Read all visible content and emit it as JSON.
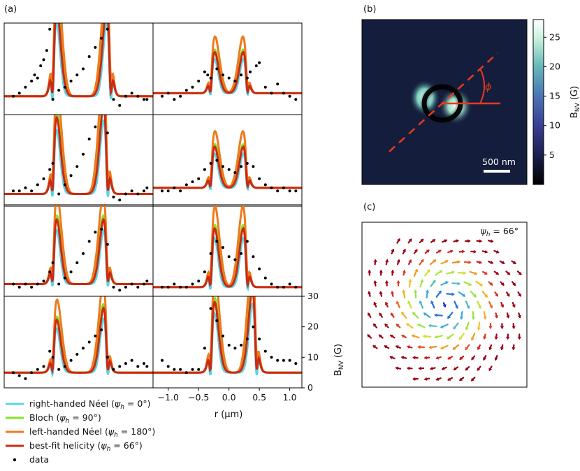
{
  "panels": {
    "a_label": "(a)",
    "b_label": "(b)",
    "c_label": "(c)"
  },
  "chart_data": [
    {
      "panel": "a",
      "type": "line",
      "xlabel": "r (µm)",
      "xlim": [
        -1.25,
        1.2
      ],
      "xticks": [
        "−1.0",
        "−0.5",
        "0.0",
        "0.5",
        "1.0"
      ],
      "xtick_values": [
        -1.0,
        -0.5,
        0.0,
        0.5,
        1.0
      ],
      "ylabel": "B_NV (G)",
      "ylabel_main": "B",
      "ylabel_sub": "NV",
      "ylabel_unit": "(G)",
      "ylim": [
        0,
        30
      ],
      "yticks": [
        "0",
        "10",
        "20",
        "30"
      ],
      "ytick_values": [
        0,
        10,
        20,
        30
      ],
      "grid": false,
      "legend": {
        "placement": "below",
        "entries": [
          {
            "text_pre": "right-handed Néel (",
            "psi": "ψ",
            "psi_sub": "h",
            "text_post": " = 0°)",
            "color": "#5bd4e6",
            "marker": "line"
          },
          {
            "text_pre": "Bloch (",
            "psi": "ψ",
            "psi_sub": "h",
            "text_post": " = 90°)",
            "color": "#7fe81f",
            "marker": "line"
          },
          {
            "text_pre": "left-handed Néel (",
            "psi": "ψ",
            "psi_sub": "h",
            "text_post": " = 180°)",
            "color": "#f07a1c",
            "marker": "line"
          },
          {
            "text_pre": "best-fit helicity (",
            "psi": "ψ",
            "psi_sub": "h",
            "text_post": " = 66°)",
            "color": "#cc2a12",
            "marker": "line"
          },
          {
            "text_pre": "data",
            "psi": "",
            "psi_sub": "",
            "text_post": "",
            "color": "#000000",
            "marker": "dot"
          }
        ]
      },
      "subplots_layout": {
        "rows": 4,
        "cols": 2
      },
      "subplots": [
        {
          "row": 0,
          "col": 0,
          "edges": [
            -0.45,
            0.5
          ],
          "amp": [
            30,
            30
          ],
          "base": 6,
          "data": [
            [
              -1.1,
              6
            ],
            [
              -1.0,
              7
            ],
            [
              -0.9,
              9
            ],
            [
              -0.8,
              11
            ],
            [
              -0.75,
              13
            ],
            [
              -0.7,
              12
            ],
            [
              -0.65,
              16
            ],
            [
              -0.6,
              18
            ],
            [
              -0.55,
              21
            ],
            [
              -0.5,
              28
            ],
            [
              -0.45,
              5
            ],
            [
              -0.35,
              8
            ],
            [
              -0.25,
              9
            ],
            [
              -0.15,
              11
            ],
            [
              -0.05,
              13
            ],
            [
              0.05,
              15
            ],
            [
              0.15,
              19
            ],
            [
              0.25,
              22
            ],
            [
              0.35,
              25
            ],
            [
              0.45,
              28
            ],
            [
              0.55,
              5
            ],
            [
              0.65,
              3
            ],
            [
              0.75,
              6
            ],
            [
              0.85,
              7
            ],
            [
              0.95,
              6
            ],
            [
              1.05,
              5
            ],
            [
              1.1,
              5
            ]
          ]
        },
        {
          "row": 0,
          "col": 1,
          "edges": [
            -0.3,
            0.3
          ],
          "amp": [
            14,
            14
          ],
          "base": 7,
          "data": [
            [
              -1.1,
              6
            ],
            [
              -1.0,
              7
            ],
            [
              -0.9,
              5
            ],
            [
              -0.8,
              6
            ],
            [
              -0.7,
              8
            ],
            [
              -0.6,
              9
            ],
            [
              -0.5,
              11
            ],
            [
              -0.4,
              14
            ],
            [
              -0.35,
              13
            ],
            [
              -0.3,
              12
            ],
            [
              -0.2,
              15
            ],
            [
              -0.1,
              13
            ],
            [
              0.0,
              12
            ],
            [
              0.1,
              11
            ],
            [
              0.2,
              13
            ],
            [
              0.3,
              12
            ],
            [
              0.35,
              14
            ],
            [
              0.45,
              16
            ],
            [
              0.5,
              17
            ],
            [
              0.6,
              9
            ],
            [
              0.7,
              7
            ],
            [
              0.8,
              10
            ],
            [
              0.9,
              7
            ],
            [
              1.0,
              6
            ],
            [
              1.1,
              5
            ]
          ]
        },
        {
          "row": 1,
          "col": 0,
          "edges": [
            -0.45,
            0.45
          ],
          "amp": [
            26,
            30
          ],
          "base": 4,
          "data": [
            [
              -1.1,
              5
            ],
            [
              -1.0,
              5
            ],
            [
              -0.9,
              6
            ],
            [
              -0.8,
              5
            ],
            [
              -0.7,
              7
            ],
            [
              -0.6,
              9
            ],
            [
              -0.5,
              12
            ],
            [
              -0.45,
              14
            ],
            [
              -0.35,
              4
            ],
            [
              -0.25,
              7
            ],
            [
              -0.15,
              10
            ],
            [
              -0.05,
              13
            ],
            [
              0.05,
              17
            ],
            [
              0.15,
              22
            ],
            [
              0.25,
              26
            ],
            [
              0.35,
              31
            ],
            [
              0.45,
              24
            ],
            [
              0.55,
              3
            ],
            [
              0.65,
              2
            ],
            [
              0.75,
              4
            ],
            [
              0.85,
              5
            ],
            [
              0.95,
              4
            ],
            [
              1.05,
              5
            ],
            [
              1.1,
              6
            ]
          ]
        },
        {
          "row": 1,
          "col": 1,
          "edges": [
            -0.3,
            0.3
          ],
          "amp": [
            14,
            14
          ],
          "base": 6,
          "data": [
            [
              -1.1,
              5
            ],
            [
              -1.0,
              5
            ],
            [
              -0.9,
              6
            ],
            [
              -0.8,
              5
            ],
            [
              -0.7,
              7
            ],
            [
              -0.6,
              8
            ],
            [
              -0.5,
              9
            ],
            [
              -0.4,
              12
            ],
            [
              -0.3,
              14
            ],
            [
              -0.2,
              15
            ],
            [
              -0.1,
              13
            ],
            [
              0.0,
              12
            ],
            [
              0.1,
              11
            ],
            [
              0.2,
              13
            ],
            [
              0.3,
              14
            ],
            [
              0.4,
              13
            ],
            [
              0.5,
              9
            ],
            [
              0.6,
              7
            ],
            [
              0.7,
              6
            ],
            [
              0.8,
              5
            ],
            [
              0.9,
              6
            ],
            [
              1.0,
              5
            ],
            [
              1.1,
              5
            ]
          ]
        },
        {
          "row": 2,
          "col": 0,
          "edges": [
            -0.45,
            0.45
          ],
          "amp": [
            22,
            22
          ],
          "base": 4,
          "data": [
            [
              -1.1,
              4
            ],
            [
              -1.0,
              3
            ],
            [
              -0.9,
              4
            ],
            [
              -0.8,
              3
            ],
            [
              -0.7,
              4
            ],
            [
              -0.6,
              5
            ],
            [
              -0.5,
              8
            ],
            [
              -0.45,
              11
            ],
            [
              -0.35,
              4
            ],
            [
              -0.25,
              6
            ],
            [
              -0.15,
              8
            ],
            [
              -0.05,
              11
            ],
            [
              0.05,
              14
            ],
            [
              0.15,
              18
            ],
            [
              0.25,
              21
            ],
            [
              0.35,
              22
            ],
            [
              0.45,
              17
            ],
            [
              0.55,
              3
            ],
            [
              0.65,
              2
            ],
            [
              0.75,
              3
            ],
            [
              0.85,
              4
            ],
            [
              0.95,
              3
            ],
            [
              1.05,
              4
            ],
            [
              1.1,
              5
            ]
          ]
        },
        {
          "row": 2,
          "col": 1,
          "edges": [
            -0.3,
            0.3
          ],
          "amp": [
            20,
            20
          ],
          "base": 3,
          "data": [
            [
              -1.1,
              3
            ],
            [
              -1.0,
              3
            ],
            [
              -0.9,
              4
            ],
            [
              -0.8,
              3
            ],
            [
              -0.7,
              3
            ],
            [
              -0.6,
              4
            ],
            [
              -0.5,
              5
            ],
            [
              -0.4,
              8
            ],
            [
              -0.3,
              14
            ],
            [
              -0.2,
              18
            ],
            [
              -0.1,
              16
            ],
            [
              0.0,
              13
            ],
            [
              0.1,
              12
            ],
            [
              0.2,
              14
            ],
            [
              0.3,
              18
            ],
            [
              0.4,
              13
            ],
            [
              0.5,
              9
            ],
            [
              0.6,
              6
            ],
            [
              0.7,
              4
            ],
            [
              0.8,
              3
            ],
            [
              0.9,
              3
            ],
            [
              1.0,
              4
            ],
            [
              1.1,
              3
            ]
          ]
        },
        {
          "row": 3,
          "col": 0,
          "edges": [
            -0.45,
            0.45
          ],
          "amp": [
            18,
            22
          ],
          "base": 5,
          "data": [
            [
              -1.1,
              5
            ],
            [
              -1.0,
              4
            ],
            [
              -0.9,
              3
            ],
            [
              -0.8,
              5
            ],
            [
              -0.7,
              6
            ],
            [
              -0.6,
              7
            ],
            [
              -0.5,
              12
            ],
            [
              -0.45,
              10
            ],
            [
              -0.35,
              6
            ],
            [
              -0.25,
              7
            ],
            [
              -0.15,
              9
            ],
            [
              -0.05,
              11
            ],
            [
              0.05,
              13
            ],
            [
              0.15,
              15
            ],
            [
              0.25,
              17
            ],
            [
              0.35,
              19
            ],
            [
              0.45,
              10
            ],
            [
              0.55,
              6
            ],
            [
              0.65,
              7
            ],
            [
              0.75,
              8
            ],
            [
              0.85,
              9
            ],
            [
              0.95,
              7
            ],
            [
              1.05,
              8
            ],
            [
              1.1,
              7
            ]
          ]
        },
        {
          "row": 3,
          "col": 1,
          "edges": [
            -0.3,
            0.45
          ],
          "amp": [
            24,
            28
          ],
          "base": 5,
          "data": [
            [
              -1.1,
              9
            ],
            [
              -1.0,
              7
            ],
            [
              -0.9,
              6
            ],
            [
              -0.8,
              6
            ],
            [
              -0.7,
              5
            ],
            [
              -0.6,
              6
            ],
            [
              -0.5,
              6
            ],
            [
              -0.4,
              13
            ],
            [
              -0.3,
              26
            ],
            [
              -0.2,
              22
            ],
            [
              -0.1,
              17
            ],
            [
              0.0,
              14
            ],
            [
              0.1,
              13
            ],
            [
              0.2,
              14
            ],
            [
              0.3,
              16
            ],
            [
              0.4,
              20
            ],
            [
              0.5,
              16
            ],
            [
              0.6,
              12
            ],
            [
              0.7,
              10
            ],
            [
              0.8,
              9
            ],
            [
              0.9,
              9
            ],
            [
              1.0,
              9
            ],
            [
              1.1,
              8
            ]
          ]
        }
      ],
      "series": [
        {
          "name": "right-handed Néel (ψh = 0°)",
          "color": "#5bd4e6"
        },
        {
          "name": "Bloch (ψh = 90°)",
          "color": "#7fe81f"
        },
        {
          "name": "left-handed Néel (ψh = 180°)",
          "color": "#f07a1c"
        },
        {
          "name": "best-fit helicity (ψh = 66°)",
          "color": "#cc2a12"
        },
        {
          "name": "data",
          "color": "#000000"
        }
      ]
    },
    {
      "panel": "b",
      "type": "heatmap",
      "colorbar": {
        "label_main": "B",
        "label_sub": "NV",
        "label_unit": "(G)",
        "ticks": [
          "5",
          "10",
          "15",
          "20",
          "25"
        ],
        "tick_values": [
          5,
          10,
          15,
          20,
          25
        ],
        "range": [
          0,
          28
        ],
        "colors": [
          "#000000",
          "#1b1f4d",
          "#3a3f95",
          "#4c79b4",
          "#67b8b8",
          "#c6f0dc",
          "#ffffff"
        ]
      },
      "scalebar_label": "500 nm",
      "angle_label": "ϕ",
      "annotation_color": "#e8391f",
      "background": "#141e3c"
    },
    {
      "panel": "c",
      "type": "vector field",
      "annotation_main": "ψ",
      "annotation_sub": "h",
      "annotation_value": " = 66°",
      "helicity_deg": 66
    }
  ]
}
